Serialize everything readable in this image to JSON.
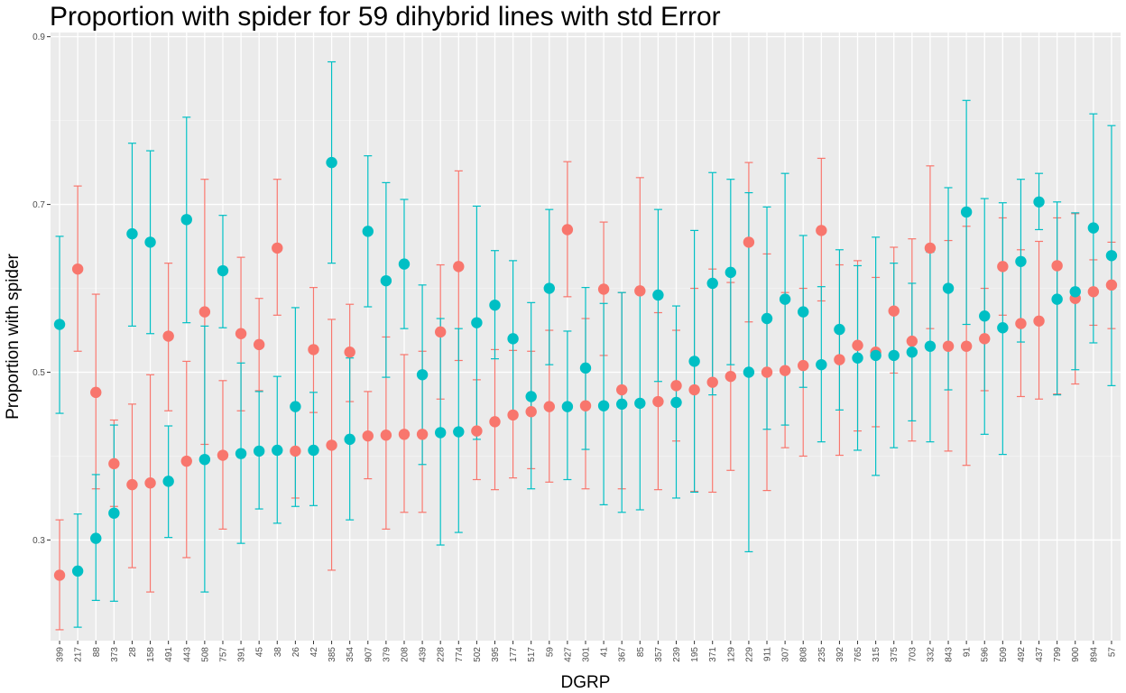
{
  "chart_data": {
    "type": "scatter",
    "title": "Proportion with spider for 59 dihybrid lines with std Error",
    "xlabel": "DGRP",
    "ylabel": "Proportion with spider",
    "ylim": [
      0.18,
      0.905
    ],
    "y_ticks": [
      0.3,
      0.5,
      0.7,
      0.9
    ],
    "y_tick_labels": [
      "0.3",
      "0.5",
      "0.7",
      "0.9"
    ],
    "grid": true,
    "legend": "none",
    "categories": [
      "399",
      "217",
      "88",
      "373",
      "28",
      "158",
      "491",
      "443",
      "508",
      "757",
      "391",
      "45",
      "38",
      "26",
      "42",
      "385",
      "354",
      "907",
      "379",
      "208",
      "439",
      "228",
      "774",
      "502",
      "395",
      "177",
      "517",
      "59",
      "427",
      "301",
      "41",
      "367",
      "85",
      "357",
      "239",
      "195",
      "371",
      "129",
      "229",
      "911",
      "307",
      "808",
      "235",
      "392",
      "765",
      "315",
      "375",
      "703",
      "332",
      "843",
      "91",
      "596",
      "509",
      "492",
      "437",
      "799",
      "900",
      "894",
      "57"
    ],
    "series": [
      {
        "color": "#F8766D",
        "values": [
          0.258,
          0.623,
          0.476,
          0.391,
          0.366,
          0.368,
          0.543,
          0.394,
          0.572,
          0.401,
          0.546,
          0.533,
          0.648,
          0.406,
          0.527,
          0.413,
          0.524,
          0.424,
          0.425,
          0.426,
          0.426,
          0.548,
          0.626,
          0.43,
          0.441,
          0.449,
          0.453,
          0.459,
          0.67,
          0.46,
          0.599,
          0.479,
          0.597,
          0.465,
          0.484,
          0.479,
          0.488,
          0.495,
          0.655,
          0.5,
          0.502,
          0.508,
          0.669,
          0.515,
          0.532,
          0.524,
          0.573,
          0.537,
          0.648,
          0.531,
          0.531,
          0.54,
          0.626,
          0.558,
          0.561,
          0.627,
          0.588,
          0.596,
          0.604
        ],
        "lower": [
          0.193,
          0.525,
          0.361,
          0.34,
          0.267,
          0.238,
          0.454,
          0.279,
          0.414,
          0.313,
          0.454,
          0.478,
          0.568,
          0.35,
          0.452,
          0.264,
          0.465,
          0.373,
          0.313,
          0.333,
          0.333,
          0.468,
          0.514,
          0.372,
          0.36,
          0.374,
          0.385,
          0.369,
          0.59,
          0.361,
          0.52,
          0.361,
          0.597,
          0.36,
          0.418,
          0.358,
          0.357,
          0.383,
          0.56,
          0.359,
          0.41,
          0.4,
          0.585,
          0.401,
          0.43,
          0.435,
          0.499,
          0.418,
          0.552,
          0.406,
          0.389,
          0.478,
          0.568,
          0.471,
          0.468,
          0.474,
          0.486,
          0.556,
          0.552
        ],
        "upper": [
          0.324,
          0.722,
          0.593,
          0.443,
          0.462,
          0.497,
          0.63,
          0.513,
          0.73,
          0.49,
          0.637,
          0.588,
          0.73,
          0.462,
          0.601,
          0.563,
          0.581,
          0.477,
          0.542,
          0.521,
          0.525,
          0.628,
          0.74,
          0.491,
          0.527,
          0.526,
          0.525,
          0.55,
          0.751,
          0.564,
          0.679,
          0.595,
          0.732,
          0.571,
          0.55,
          0.6,
          0.623,
          0.607,
          0.75,
          0.641,
          0.595,
          0.6,
          0.755,
          0.628,
          0.633,
          0.613,
          0.649,
          0.659,
          0.746,
          0.657,
          0.674,
          0.6,
          0.684,
          0.646,
          0.656,
          0.684,
          0.689,
          0.634,
          0.655
        ]
      },
      {
        "color": "#00BFC4",
        "values": [
          0.557,
          0.263,
          0.302,
          0.332,
          0.665,
          0.655,
          0.37,
          0.682,
          0.396,
          0.621,
          0.403,
          0.406,
          0.407,
          0.459,
          0.407,
          0.75,
          0.42,
          0.668,
          0.609,
          0.629,
          0.497,
          0.428,
          0.429,
          0.559,
          0.58,
          0.54,
          0.471,
          0.6,
          0.459,
          0.505,
          0.46,
          0.462,
          0.463,
          0.592,
          0.464,
          0.513,
          0.606,
          0.619,
          0.5,
          0.564,
          0.587,
          0.572,
          0.509,
          0.551,
          0.517,
          0.52,
          0.52,
          0.524,
          0.531,
          0.6,
          0.691,
          0.567,
          0.553,
          0.632,
          0.703,
          0.587,
          0.596,
          0.672,
          0.639
        ],
        "lower": [
          0.451,
          0.196,
          0.228,
          0.227,
          0.555,
          0.546,
          0.303,
          0.559,
          0.238,
          0.553,
          0.296,
          0.337,
          0.32,
          0.34,
          0.341,
          0.63,
          0.324,
          0.578,
          0.494,
          0.552,
          0.39,
          0.294,
          0.309,
          0.42,
          0.516,
          0.447,
          0.361,
          0.509,
          0.372,
          0.408,
          0.342,
          0.333,
          0.336,
          0.489,
          0.35,
          0.357,
          0.473,
          0.509,
          0.286,
          0.432,
          0.437,
          0.482,
          0.417,
          0.455,
          0.407,
          0.377,
          0.41,
          0.442,
          0.417,
          0.479,
          0.557,
          0.426,
          0.402,
          0.536,
          0.67,
          0.473,
          0.503,
          0.535,
          0.484
        ],
        "upper": [
          0.662,
          0.331,
          0.378,
          0.437,
          0.773,
          0.764,
          0.436,
          0.804,
          0.555,
          0.687,
          0.511,
          0.477,
          0.495,
          0.577,
          0.476,
          0.87,
          0.517,
          0.758,
          0.726,
          0.706,
          0.604,
          0.564,
          0.552,
          0.698,
          0.645,
          0.633,
          0.583,
          0.694,
          0.549,
          0.601,
          0.582,
          0.595,
          0.595,
          0.694,
          0.579,
          0.669,
          0.738,
          0.73,
          0.714,
          0.697,
          0.737,
          0.663,
          0.602,
          0.646,
          0.627,
          0.661,
          0.63,
          0.606,
          0.643,
          0.72,
          0.824,
          0.707,
          0.702,
          0.73,
          0.737,
          0.703,
          0.69,
          0.808,
          0.794
        ]
      }
    ]
  }
}
